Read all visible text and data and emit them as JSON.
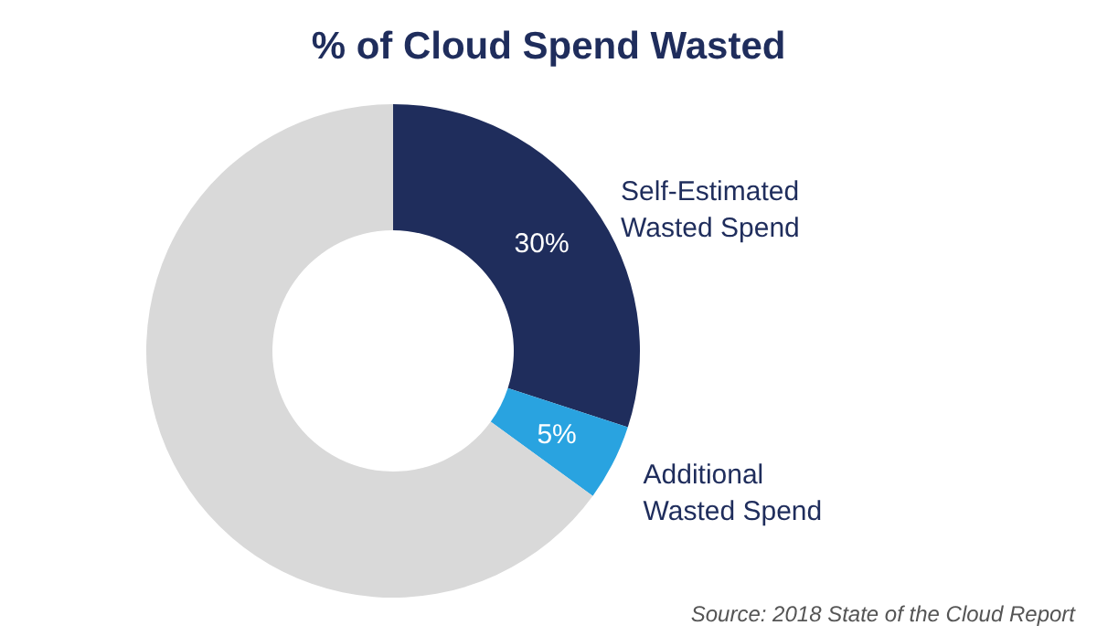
{
  "chart_data": {
    "type": "donut",
    "title": "% of Cloud Spend Wasted",
    "categories": [
      "Self-Estimated Wasted Spend",
      "Additional Wasted Spend",
      null
    ],
    "values": [
      30,
      5,
      65
    ],
    "colors": [
      "#1f2d5c",
      "#29a3e0",
      "#d9d9d9"
    ],
    "value_labels": [
      "30%",
      "5%",
      null
    ],
    "legend": false,
    "annotations": [
      "Source: 2018 State of the Cloud Report"
    ]
  }
}
